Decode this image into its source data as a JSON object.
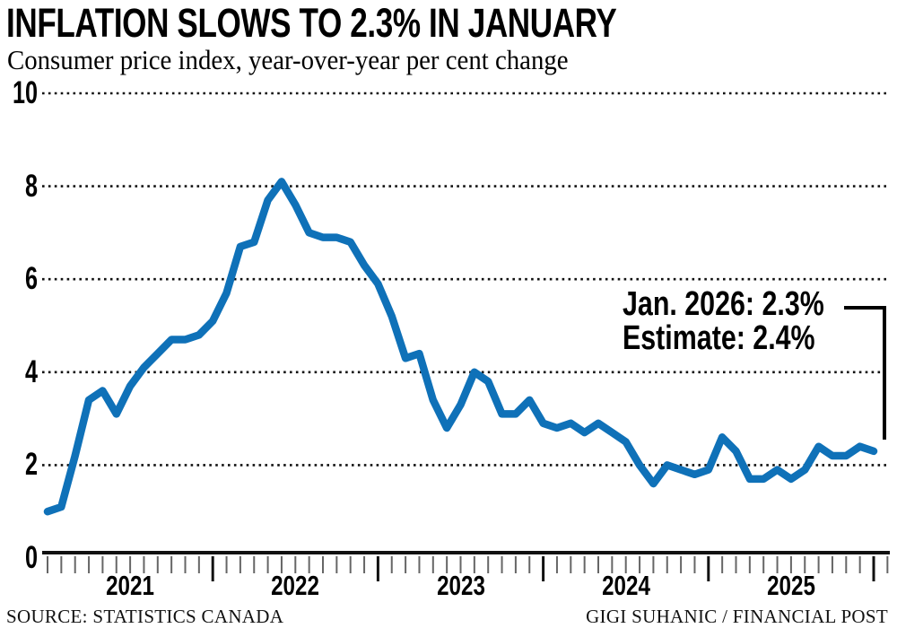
{
  "footer": {
    "source": "SOURCE: STATISTICS CANADA",
    "credit": "GIGI SUHANIC / FINANCIAL POST"
  },
  "colors": {
    "line": "#0f71b8",
    "grid": "#111111",
    "axis": "#111111",
    "tick_minor": "#666666",
    "tick_major": "#111111",
    "bracket": "#000000",
    "text": "#000000"
  },
  "chart_data": {
    "type": "line",
    "title": "INFLATION SLOWS TO 2.3% IN JANUARY",
    "subtitle": "Consumer price index, year-over-year per cent change",
    "frequency": "monthly",
    "x_start_month": "Jan 2021",
    "x_end_month": "Jan 2026",
    "year_labels": [
      "2021",
      "2022",
      "2023",
      "2024",
      "2025"
    ],
    "yticks": [
      0,
      2,
      4,
      6,
      8,
      10
    ],
    "ylim": [
      0,
      10
    ],
    "grid": "horizontal-dotted",
    "legend": "none",
    "series": [
      {
        "name": "CPI year-over-year per cent change",
        "values": [
          1.0,
          1.1,
          2.2,
          3.4,
          3.6,
          3.1,
          3.7,
          4.1,
          4.4,
          4.7,
          4.7,
          4.8,
          5.1,
          5.7,
          6.7,
          6.8,
          7.7,
          8.1,
          7.6,
          7.0,
          6.9,
          6.9,
          6.8,
          6.3,
          5.9,
          5.2,
          4.3,
          4.4,
          3.4,
          2.8,
          3.3,
          4.0,
          3.8,
          3.1,
          3.1,
          3.4,
          2.9,
          2.8,
          2.9,
          2.7,
          2.9,
          2.7,
          2.5,
          2.0,
          1.6,
          2.0,
          1.9,
          1.8,
          1.9,
          2.6,
          2.3,
          1.7,
          1.7,
          1.9,
          1.7,
          1.9,
          2.4,
          2.2,
          2.2,
          2.4,
          2.3
        ]
      }
    ],
    "annotation": {
      "line1": "Jan. 2026: 2.3%",
      "line2": "Estimate: 2.4%",
      "last_point_value": 2.3,
      "estimate_value": 2.4
    }
  }
}
